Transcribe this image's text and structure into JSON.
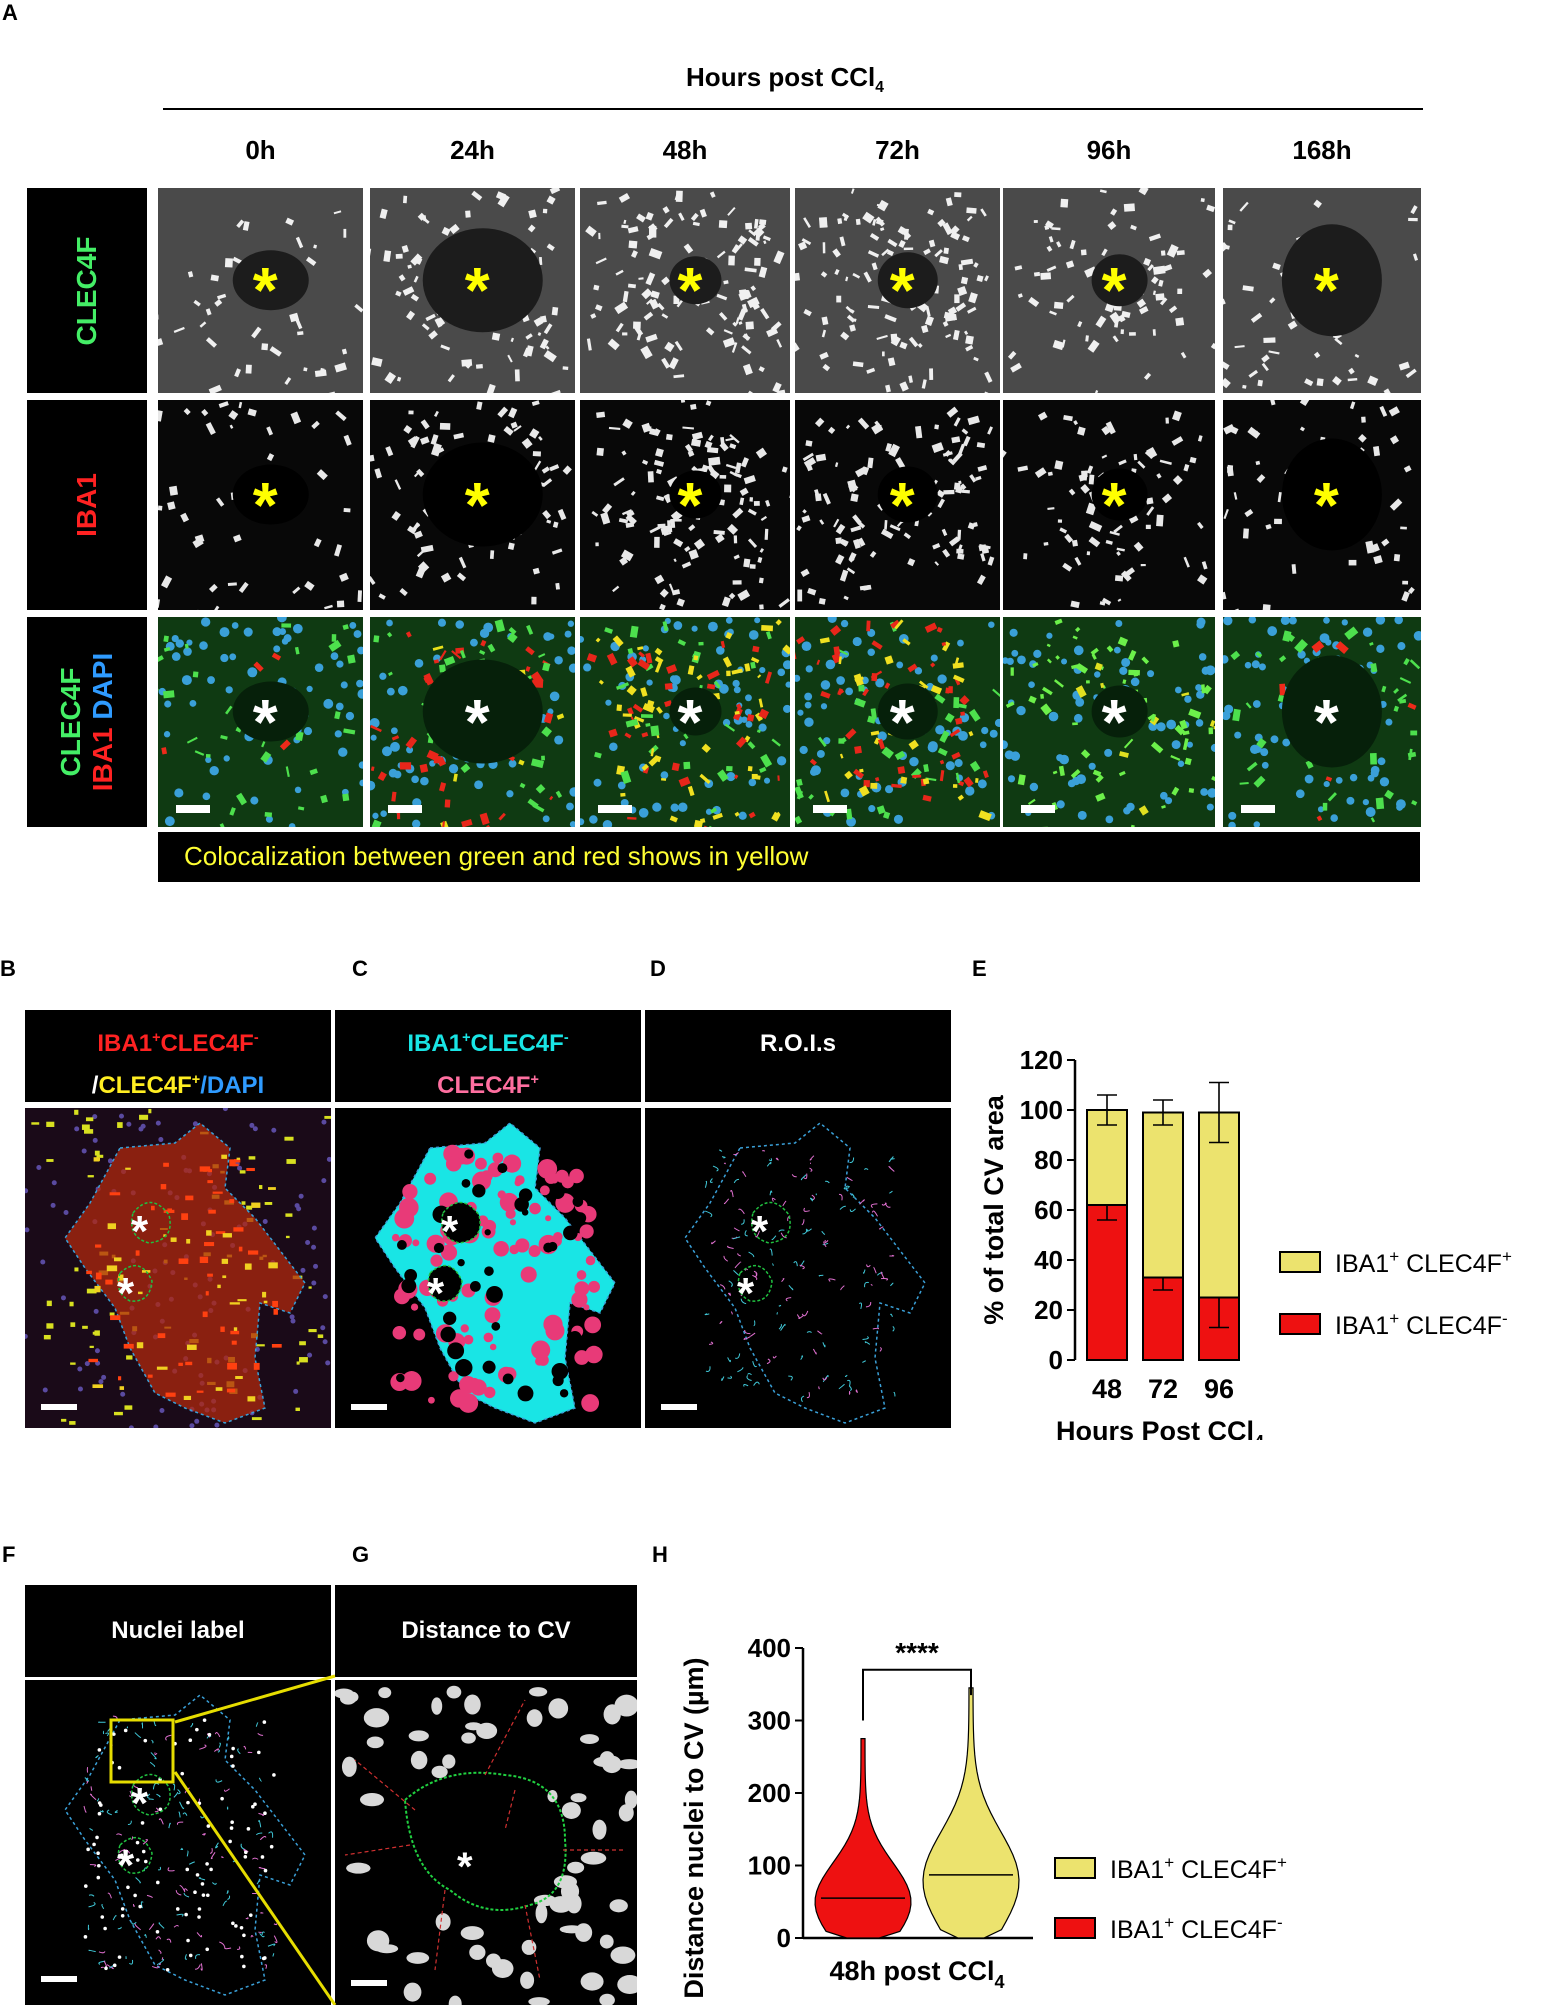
{
  "panel_letters": [
    "A",
    "B",
    "C",
    "D",
    "E",
    "F",
    "G",
    "H"
  ],
  "panelA": {
    "timeline_label_main": "Hours post CCl",
    "timeline_label_sub": "4",
    "timepoints": [
      "0h",
      "24h",
      "48h",
      "72h",
      "96h",
      "168h"
    ],
    "row_labels": {
      "row1": "CLEC4F",
      "row2": "IBA1",
      "row3_line1": "CLEC4F",
      "row3_line2": "IBA1",
      "row3_line3": "DAPI"
    },
    "asterisk": "*",
    "caption": "Colocalization between green and red shows in yellow"
  },
  "panelB": {
    "header_part1": "IBA1",
    "header_sup1": "+",
    "header_part2": "CLEC4F",
    "header_sup2": "-",
    "header_line2_part1": "/",
    "header_line2_part2": "CLEC4F",
    "header_line2_sup": "+",
    "header_line2_part3": "/DAPI"
  },
  "panelC": {
    "header_part1": "IBA1",
    "header_sup1": "+",
    "header_part2": "CLEC4F",
    "header_sup2": "-",
    "header_line2": "CLEC4F",
    "header_line2_sup": "+"
  },
  "panelD": {
    "header": "R.O.I.s"
  },
  "panelF": {
    "header": "Nuclei label"
  },
  "panelG": {
    "header": "Distance to CV"
  },
  "colors": {
    "red": "#ee1111",
    "yellow": "#ece36e",
    "cyan": "#19e5e5",
    "pink": "#e83a78",
    "green_label": "#44ee66",
    "red_label": "#ff2222",
    "blue_label": "#2f9bff",
    "asterisk_yellow": "#ffff00"
  },
  "chart_data": [
    {
      "type": "bar",
      "stacked": true,
      "ylabel": "% of total CV area",
      "xlabel_main": "Hours Post CCl",
      "xlabel_sub": "4",
      "categories": [
        "48",
        "72",
        "96"
      ],
      "ylim": [
        0,
        120
      ],
      "yticks": [
        "0",
        "20",
        "40",
        "60",
        "80",
        "100",
        "120"
      ],
      "series": [
        {
          "name": "IBA1+ CLEC4F-",
          "label_main": "IBA1",
          "label_sup1": "+",
          "label_mid": " CLEC4F",
          "label_sup2": "-",
          "color": "#ee1111",
          "values": [
            62,
            33,
            25
          ],
          "error": [
            6,
            5,
            12
          ]
        },
        {
          "name": "IBA1+ CLEC4F+",
          "label_main": "IBA1",
          "label_sup1": "+",
          "label_mid": " CLEC4F",
          "label_sup2": "+",
          "color": "#ece36e",
          "values": [
            38,
            66,
            74
          ],
          "error": [
            6,
            5,
            12
          ]
        }
      ]
    },
    {
      "type": "violin",
      "ylabel": "Distance nuclei to CV (µm)",
      "xlabel_main": "48h post CCl",
      "xlabel_sub": "4",
      "ylim": [
        0,
        400
      ],
      "yticks": [
        "0",
        "100",
        "200",
        "300",
        "400"
      ],
      "significance": "****",
      "series": [
        {
          "name": "IBA1+ CLEC4F-",
          "label_main": "IBA1",
          "label_sup1": "+",
          "label_mid": " CLEC4F",
          "label_sup2": "-",
          "color": "#ee1111",
          "median": 55,
          "max": 275
        },
        {
          "name": "IBA1+ CLEC4F+",
          "label_main": "IBA1",
          "label_sup1": "+",
          "label_mid": " CLEC4F",
          "label_sup2": "+",
          "color": "#ece36e",
          "median": 87,
          "max": 345
        }
      ]
    }
  ]
}
